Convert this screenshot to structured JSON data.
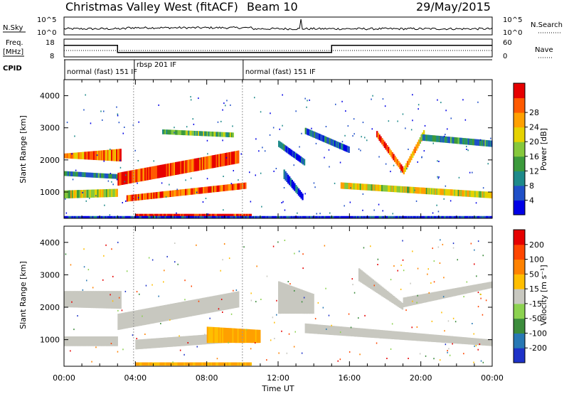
{
  "header": {
    "title": "Christmas Valley West (fitACF)",
    "beam": "Beam 10",
    "date": "29/May/2015"
  },
  "top_panels": {
    "nsky_label": "N.Sky",
    "nsky_ticks": [
      "10^5",
      "10^0"
    ],
    "nsearch_label": "N.Search",
    "freq_label_line1": "Freq.",
    "freq_label_line2": "[MHz]",
    "freq_ticks": [
      "18",
      "8"
    ],
    "nave_label": "Nave",
    "nave_ticks": [
      "60",
      "0"
    ],
    "cpid_label": "CPID",
    "cpid_segments": [
      {
        "start_hour": 0,
        "end_hour": 3.9,
        "label": "normal (fast) 151 IF"
      },
      {
        "start_hour": 3.9,
        "end_hour": 10.0,
        "label": "rbsp 201 IF"
      },
      {
        "start_hour": 10.0,
        "end_hour": 24,
        "label": "normal (fast) 151 IF"
      }
    ],
    "freq_series": [
      {
        "start_hour": 0,
        "end_hour": 3.0,
        "value": 14.5
      },
      {
        "start_hour": 3.0,
        "end_hour": 15.0,
        "value": 10.5
      },
      {
        "start_hour": 15.0,
        "end_hour": 24,
        "value": 14.5
      }
    ]
  },
  "chart_data": [
    {
      "type": "heatmap",
      "name": "power",
      "ylabel": "Slant Range [km]",
      "xlabel": "Time UT",
      "yticks": [
        1000,
        2000,
        3000,
        4000
      ],
      "ylim": [
        180,
        4500
      ],
      "xlim": [
        0,
        24
      ],
      "xtick_labels": [
        "00:00",
        "04:00",
        "08:00",
        "12:00",
        "16:00",
        "20:00",
        "00:00"
      ],
      "colorbar_label": "Power [dB]",
      "colorbar_ticks": [
        "4",
        "8",
        "12",
        "16",
        "20",
        "24",
        "28"
      ],
      "colorbar_colors": [
        "#0000e6",
        "#2050c8",
        "#1e8a8a",
        "#3c9a3c",
        "#86c83c",
        "#e6d200",
        "#ffa000",
        "#ff5a00",
        "#e60000"
      ],
      "bands": [
        {
          "t0": 0.0,
          "t1": 3.2,
          "r0": 2050,
          "r1": 2200,
          "r0e": 1950,
          "r1e": 2350,
          "level": 0.75
        },
        {
          "t0": 0.0,
          "t1": 3.2,
          "r0": 1500,
          "r1": 1650,
          "r0e": 1400,
          "r1e": 1550,
          "level": 0.3
        },
        {
          "t0": 0.0,
          "t1": 3.0,
          "r0": 800,
          "r1": 1050,
          "r0e": 850,
          "r1e": 1100,
          "level": 0.55
        },
        {
          "t0": 3.0,
          "t1": 9.8,
          "r0": 1200,
          "r1": 1600,
          "r0e": 1900,
          "r1e": 2300,
          "level": 0.9
        },
        {
          "t0": 3.5,
          "t1": 10.2,
          "r0": 700,
          "r1": 900,
          "r0e": 1100,
          "r1e": 1300,
          "level": 0.8
        },
        {
          "t0": 4.0,
          "t1": 10.5,
          "r0": 200,
          "r1": 320,
          "r0e": 200,
          "r1e": 320,
          "level": 0.95
        },
        {
          "t0": 5.5,
          "t1": 9.5,
          "r0": 2800,
          "r1": 2950,
          "r0e": 2700,
          "r1e": 2850,
          "level": 0.45
        },
        {
          "t0": 12.0,
          "t1": 13.5,
          "r0": 2400,
          "r1": 2600,
          "r0e": 1800,
          "r1e": 2000,
          "level": 0.2
        },
        {
          "t0": 12.3,
          "t1": 13.4,
          "r0": 1400,
          "r1": 1700,
          "r0e": 700,
          "r1e": 900,
          "level": 0.15
        },
        {
          "t0": 13.5,
          "t1": 16.0,
          "r0": 2800,
          "r1": 3000,
          "r0e": 2200,
          "r1e": 2400,
          "level": 0.2
        },
        {
          "t0": 15.5,
          "t1": 24.0,
          "r0": 1100,
          "r1": 1300,
          "r0e": 800,
          "r1e": 1000,
          "level": 0.6
        },
        {
          "t0": 17.5,
          "t1": 19.0,
          "r0": 2700,
          "r1": 2900,
          "r0e": 1550,
          "r1e": 1750,
          "level": 0.85
        },
        {
          "t0": 19.0,
          "t1": 20.2,
          "r0": 1550,
          "r1": 1750,
          "r0e": 2800,
          "r1e": 3000,
          "level": 0.7
        },
        {
          "t0": 20.0,
          "t1": 24.0,
          "r0": 2600,
          "r1": 2800,
          "r0e": 2400,
          "r1e": 2600,
          "level": 0.3
        },
        {
          "t0": 0.0,
          "t1": 24.0,
          "r0": 180,
          "r1": 250,
          "r0e": 180,
          "r1e": 250,
          "level": 0.1
        }
      ]
    },
    {
      "type": "heatmap",
      "name": "velocity",
      "ylabel": "Slant Range [km]",
      "xlabel": "Time UT",
      "yticks": [
        1000,
        2000,
        3000,
        4000
      ],
      "ylim": [
        180,
        4500
      ],
      "xlim": [
        0,
        24
      ],
      "xtick_labels": [
        "00:00",
        "04:00",
        "08:00",
        "12:00",
        "16:00",
        "20:00",
        "00:00"
      ],
      "colorbar_label": "Velocity [m s⁻¹]",
      "colorbar_ticks": [
        "200",
        "100",
        "50",
        "15",
        "-15",
        "-50",
        "-100",
        "-200"
      ],
      "colorbar_colors": [
        "#1e32c8",
        "#2878b4",
        "#3c8c3c",
        "#8cd250",
        "#c8c8c0",
        "#ffbe00",
        "#ff8200",
        "#ff4600",
        "#e60000"
      ],
      "bands": [
        {
          "t0": 0.0,
          "t1": 3.2,
          "r0": 2000,
          "r1": 2500,
          "r0e": 1950,
          "r1e": 2500,
          "level": "grey"
        },
        {
          "t0": 0.0,
          "t1": 3.0,
          "r0": 800,
          "r1": 1100,
          "r0e": 800,
          "r1e": 1100,
          "level": "grey"
        },
        {
          "t0": 3.0,
          "t1": 9.8,
          "r0": 1300,
          "r1": 1800,
          "r0e": 2000,
          "r1e": 2500,
          "level": "grey"
        },
        {
          "t0": 4.0,
          "t1": 9.0,
          "r0": 700,
          "r1": 1000,
          "r0e": 900,
          "r1e": 1200,
          "level": "grey"
        },
        {
          "t0": 8.0,
          "t1": 11.0,
          "r0": 900,
          "r1": 1400,
          "r0e": 900,
          "r1e": 1300,
          "level": "orange"
        },
        {
          "t0": 4.0,
          "t1": 10.5,
          "r0": 200,
          "r1": 300,
          "r0e": 200,
          "r1e": 300,
          "level": "orange"
        },
        {
          "t0": 12.0,
          "t1": 14.0,
          "r0": 1800,
          "r1": 2800,
          "r0e": 1800,
          "r1e": 2400,
          "level": "grey"
        },
        {
          "t0": 13.5,
          "t1": 24.0,
          "r0": 1200,
          "r1": 1500,
          "r0e": 800,
          "r1e": 1000,
          "level": "grey"
        },
        {
          "t0": 16.5,
          "t1": 19.0,
          "r0": 2800,
          "r1": 3200,
          "r0e": 1900,
          "r1e": 2100,
          "level": "grey"
        },
        {
          "t0": 19.0,
          "t1": 24.0,
          "r0": 2000,
          "r1": 2300,
          "r0e": 2600,
          "r1e": 2800,
          "level": "grey"
        }
      ]
    }
  ]
}
